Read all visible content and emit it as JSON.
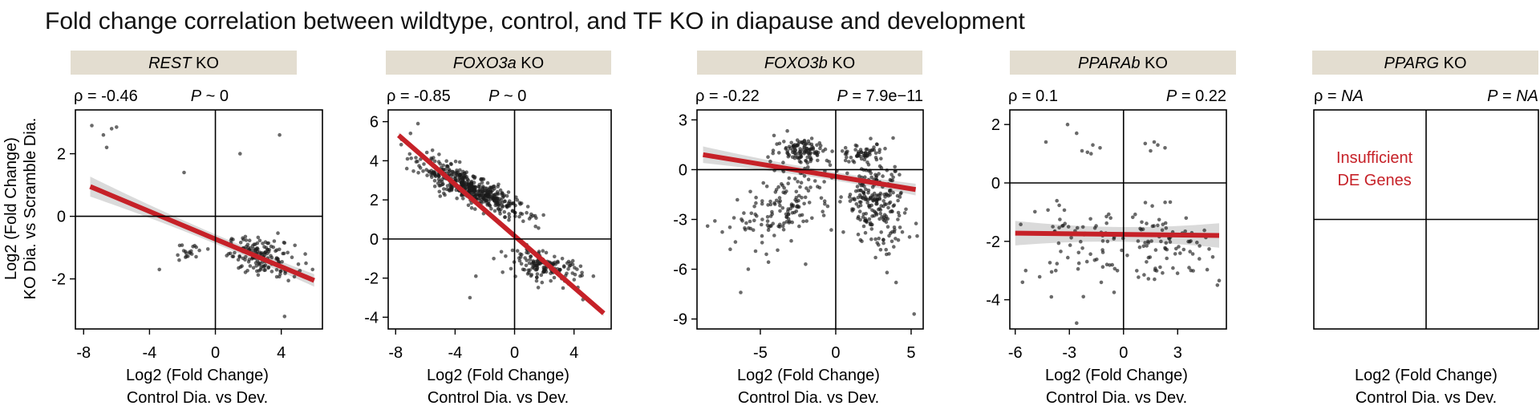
{
  "figure_title": "Fold change correlation between wildtype, control, and TF KO in diapause and development",
  "shared_ylabel": [
    "Log2 (Fold Change)",
    "KO Dia. vs Scramble Dia."
  ],
  "shared_xlabel": [
    "Log2 (Fold Change)",
    "Control Dia. vs Dev."
  ],
  "colors": {
    "header_bg": "#e3ddd0",
    "fit_line": "#c62128",
    "ci_band": "#d6d6d6",
    "points": "#1a1a1a",
    "insufficient_text": "#c62128"
  },
  "panels": [
    {
      "gene": "REST",
      "suffix": " KO",
      "rho": "-0.46",
      "p_sym": "P",
      "p_op": "~",
      "p_val": "0"
    },
    {
      "gene": "FOXO3a",
      "suffix": " KO",
      "rho": "-0.85",
      "p_sym": "P",
      "p_op": "~",
      "p_val": "0"
    },
    {
      "gene": "FOXO3b",
      "suffix": " KO",
      "rho": "-0.22",
      "p_sym": "P",
      "p_op": "=",
      "p_val": "7.9e−11"
    },
    {
      "gene": "PPARAb",
      "suffix": " KO",
      "rho": "0.1",
      "p_sym": "P",
      "p_op": "=",
      "p_val": "0.22"
    },
    {
      "gene": "PPARG",
      "suffix": " KO",
      "rho": "NA",
      "p_sym": "P",
      "p_op": "=",
      "p_val": "NA",
      "note": [
        "Insufficient",
        "DE Genes"
      ]
    }
  ],
  "chart_data": [
    {
      "type": "scatter",
      "title": "REST KO",
      "xlabel": "Log2 (Fold Change) Control Dia. vs Dev.",
      "ylabel": "Log2 (Fold Change) KO Dia. vs Scramble Dia.",
      "xlim": [
        -8.5,
        6.5
      ],
      "ylim": [
        -3.6,
        3.4
      ],
      "xticks": [
        -8,
        -4,
        0,
        4
      ],
      "yticks": [
        -2,
        0,
        2
      ],
      "fit": {
        "x": [
          -7.6,
          6.0
        ],
        "y": [
          0.95,
          -2.05
        ]
      },
      "ci_halfwidth": [
        0.32,
        0.05,
        0.2
      ],
      "clusters": [
        {
          "cx": 2.8,
          "cy": -1.3,
          "sx": 1.0,
          "sy": 0.3,
          "n": 170,
          "corr": -0.3
        },
        {
          "cx": -1.6,
          "cy": -1.1,
          "sx": 0.4,
          "sy": 0.15,
          "n": 18,
          "corr": 0
        }
      ],
      "points": [
        [
          -7.5,
          2.9
        ],
        [
          -6.8,
          2.6
        ],
        [
          -6.3,
          2.8
        ],
        [
          -6.0,
          2.85
        ],
        [
          -6.6,
          2.2
        ],
        [
          -1.9,
          1.4
        ],
        [
          1.5,
          2.0
        ],
        [
          3.9,
          2.6
        ],
        [
          -3.4,
          -1.7
        ],
        [
          4.2,
          -3.2
        ],
        [
          5.5,
          -1.5
        ],
        [
          -2.2,
          -1.4
        ],
        [
          0.8,
          -1.2
        ],
        [
          5.9,
          -1.7
        ]
      ]
    },
    {
      "type": "scatter",
      "title": "FOXO3a KO",
      "xlabel": "Log2 (Fold Change) Control Dia. vs Dev.",
      "ylabel": "Log2 (Fold Change) KO Dia. vs Scramble Dia.",
      "xlim": [
        -8.5,
        6.5
      ],
      "ylim": [
        -4.6,
        6.6
      ],
      "xticks": [
        -8,
        -4,
        0,
        4
      ],
      "yticks": [
        -4,
        -2,
        0,
        2,
        4,
        6
      ],
      "fit": {
        "x": [
          -7.8,
          6.0
        ],
        "y": [
          5.3,
          -3.8
        ]
      },
      "ci_halfwidth": [
        0.15,
        0.05,
        0.15
      ],
      "clusters": [
        {
          "cx": -3.0,
          "cy": 2.6,
          "sx": 1.7,
          "sy": 0.7,
          "n": 470,
          "corr": -0.85
        },
        {
          "cx": 2.0,
          "cy": -1.4,
          "sx": 1.2,
          "sy": 0.4,
          "n": 150,
          "corr": -0.5
        }
      ],
      "points": [
        [
          -7.6,
          5.1
        ],
        [
          -7.0,
          5.4
        ],
        [
          -6.5,
          5.9
        ],
        [
          -2.6,
          -1.9
        ],
        [
          -3.0,
          -3.0
        ],
        [
          -0.8,
          -1.7
        ],
        [
          -1.4,
          -1.0
        ],
        [
          5.3,
          -1.9
        ],
        [
          4.6,
          -3.1
        ]
      ]
    },
    {
      "type": "scatter",
      "title": "FOXO3b KO",
      "xlabel": "Log2 (Fold Change) Control Dia. vs Dev.",
      "ylabel": "Log2 (Fold Change) KO Dia. vs Scramble Dia.",
      "xlim": [
        -9.2,
        5.8
      ],
      "ylim": [
        -9.6,
        3.6
      ],
      "xticks": [
        -5,
        0,
        5
      ],
      "yticks": [
        -9,
        -6,
        -3,
        0,
        3
      ],
      "fit": {
        "x": [
          -8.8,
          5.3
        ],
        "y": [
          0.9,
          -1.2
        ]
      },
      "ci_halfwidth": [
        0.5,
        0.1,
        0.35
      ],
      "clusters": [
        {
          "cx": -2.2,
          "cy": 1.2,
          "sx": 0.9,
          "sy": 0.4,
          "n": 110,
          "corr": 0
        },
        {
          "cx": 1.8,
          "cy": 1.0,
          "sx": 0.7,
          "sy": 0.3,
          "n": 45,
          "corr": 0
        },
        {
          "cx": -3.2,
          "cy": -2.2,
          "sx": 1.6,
          "sy": 1.2,
          "n": 150,
          "corr": 0.5
        },
        {
          "cx": 2.6,
          "cy": -2.0,
          "sx": 1.0,
          "sy": 1.4,
          "n": 240,
          "corr": -0.3
        }
      ],
      "points": [
        [
          -6.3,
          -7.4
        ],
        [
          -8.5,
          -3.4
        ],
        [
          -7.0,
          -4.8
        ],
        [
          -5.8,
          -6.0
        ],
        [
          -4.6,
          -5.1
        ],
        [
          4.0,
          -6.8
        ],
        [
          5.2,
          -8.7
        ],
        [
          5.4,
          -4.0
        ],
        [
          -2.0,
          -5.7
        ],
        [
          3.4,
          -6.2
        ]
      ]
    },
    {
      "type": "scatter",
      "title": "PPARAb KO",
      "xlabel": "Log2 (Fold Change) Control Dia. vs Dev.",
      "ylabel": "Log2 (Fold Change) KO Dia. vs Scramble Dia.",
      "xlim": [
        -6.3,
        5.7
      ],
      "ylim": [
        -5.0,
        2.5
      ],
      "xticks": [
        -6,
        -3,
        0,
        3
      ],
      "yticks": [
        -4,
        -2,
        0,
        2
      ],
      "fit": {
        "x": [
          -6.0,
          5.3
        ],
        "y": [
          -1.72,
          -1.8
        ]
      },
      "ci_halfwidth": [
        0.42,
        0.08,
        0.42
      ],
      "clusters": [
        {
          "cx": -2.0,
          "cy": -2.2,
          "sx": 1.6,
          "sy": 0.8,
          "n": 70,
          "corr": -0.3
        },
        {
          "cx": 2.2,
          "cy": -2.1,
          "sx": 1.3,
          "sy": 0.6,
          "n": 80,
          "corr": 0
        }
      ],
      "points": [
        [
          -3.1,
          2.0
        ],
        [
          -2.6,
          1.7
        ],
        [
          -4.3,
          1.4
        ],
        [
          -2.3,
          1.1
        ],
        [
          -1.8,
          1.0
        ],
        [
          -1.3,
          1.2
        ],
        [
          -1.7,
          1.3
        ],
        [
          -2.0,
          1.05
        ],
        [
          1.2,
          1.35
        ],
        [
          1.7,
          1.4
        ],
        [
          2.3,
          1.2
        ],
        [
          1.5,
          1.1
        ],
        [
          1.9,
          1.3
        ],
        [
          -5.6,
          -3.4
        ],
        [
          -4.0,
          -3.9
        ],
        [
          -2.6,
          -4.8
        ],
        [
          5.2,
          -3.5
        ],
        [
          4.2,
          -2.6
        ]
      ]
    },
    {
      "type": "scatter",
      "title": "PPARG KO",
      "xlabel": "Log2 (Fold Change) Control Dia. vs Dev.",
      "ylabel": "",
      "xlim": [
        -6.0,
        6.0
      ],
      "ylim": [
        -5.0,
        5.0
      ],
      "xticks": [],
      "yticks": [],
      "fit": null,
      "clusters": [],
      "points": []
    }
  ]
}
